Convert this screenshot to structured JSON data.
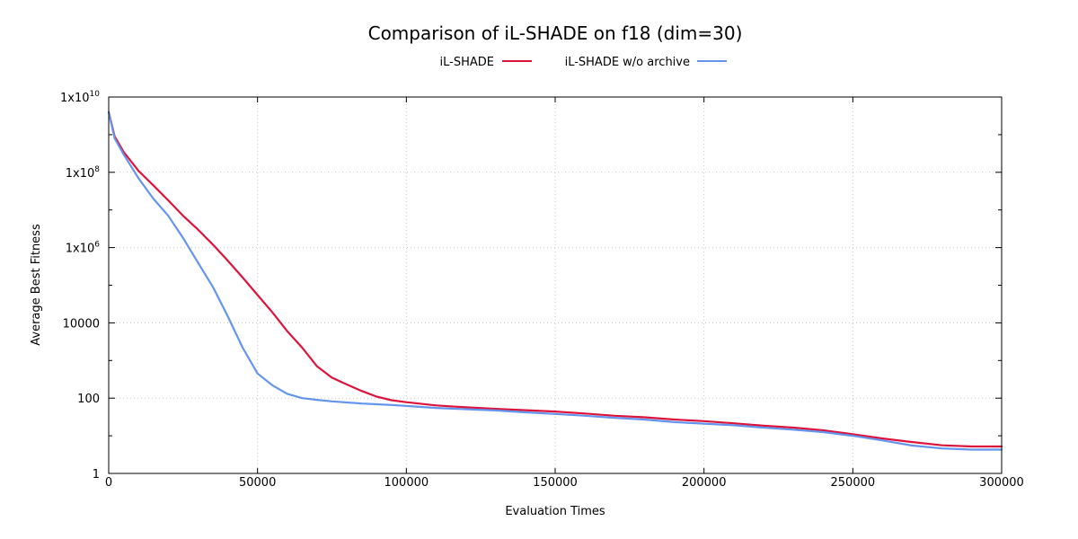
{
  "chart_data": {
    "type": "line",
    "title": "Comparison of iL-SHADE on f18 (dim=30)",
    "xlabel": "Evaluation Times",
    "ylabel": "Average Best Fitness",
    "xlim": [
      0,
      300000
    ],
    "ylim": [
      1,
      10000000000
    ],
    "yscale": "log",
    "grid": true,
    "legend_position": "top-center",
    "x_ticks": [
      "0",
      "50000",
      "100000",
      "150000",
      "200000",
      "250000",
      "300000"
    ],
    "y_ticks": [
      {
        "value": 1,
        "mantissa": "1",
        "exp": ""
      },
      {
        "value": 100,
        "mantissa": "100",
        "exp": ""
      },
      {
        "value": 10000,
        "mantissa": "10000",
        "exp": ""
      },
      {
        "value": 1000000,
        "mantissa": "1x10",
        "exp": "6"
      },
      {
        "value": 100000000,
        "mantissa": "1x10",
        "exp": "8"
      },
      {
        "value": 10000000000,
        "mantissa": "1x10",
        "exp": "10"
      }
    ],
    "series": [
      {
        "name": "iL-SHADE",
        "color": "#dc143c",
        "x": [
          0,
          2000,
          5000,
          10000,
          15000,
          20000,
          25000,
          30000,
          35000,
          40000,
          45000,
          50000,
          55000,
          60000,
          65000,
          70000,
          75000,
          80000,
          85000,
          90000,
          95000,
          100000,
          110000,
          120000,
          130000,
          140000,
          150000,
          160000,
          170000,
          180000,
          190000,
          200000,
          210000,
          220000,
          230000,
          240000,
          250000,
          260000,
          270000,
          280000,
          290000,
          300000
        ],
        "y": [
          4000000000,
          900000000,
          350000000,
          110000000,
          45000000,
          18000000,
          7000000,
          3000000,
          1200000,
          450000,
          160000,
          55000,
          19000,
          6000,
          2200,
          700,
          350,
          230,
          155,
          110,
          88,
          78,
          64,
          57,
          52,
          48,
          44,
          39,
          34,
          31,
          27,
          24.5,
          21.5,
          18.5,
          16.5,
          14,
          11,
          8.5,
          6.8,
          5.6,
          5.2,
          5.2
        ]
      },
      {
        "name": "iL-SHADE w/o archive",
        "color": "#6495ed",
        "x": [
          0,
          2000,
          5000,
          10000,
          15000,
          20000,
          25000,
          30000,
          35000,
          40000,
          45000,
          50000,
          55000,
          60000,
          65000,
          70000,
          75000,
          80000,
          85000,
          90000,
          95000,
          100000,
          110000,
          120000,
          130000,
          140000,
          150000,
          160000,
          170000,
          180000,
          190000,
          200000,
          210000,
          220000,
          230000,
          240000,
          250000,
          260000,
          270000,
          280000,
          290000,
          300000
        ],
        "y": [
          4000000000,
          800000000,
          300000000,
          70000000,
          20000000,
          7000000,
          1800000,
          400000,
          90000,
          15000,
          2200,
          450,
          220,
          130,
          100,
          90,
          82,
          77,
          72,
          69,
          66,
          62,
          55,
          51,
          47,
          42,
          38,
          34,
          30,
          27,
          23,
          21,
          19,
          16.5,
          14.5,
          12.5,
          10,
          7.5,
          5.5,
          4.6,
          4.3,
          4.3
        ]
      }
    ]
  }
}
